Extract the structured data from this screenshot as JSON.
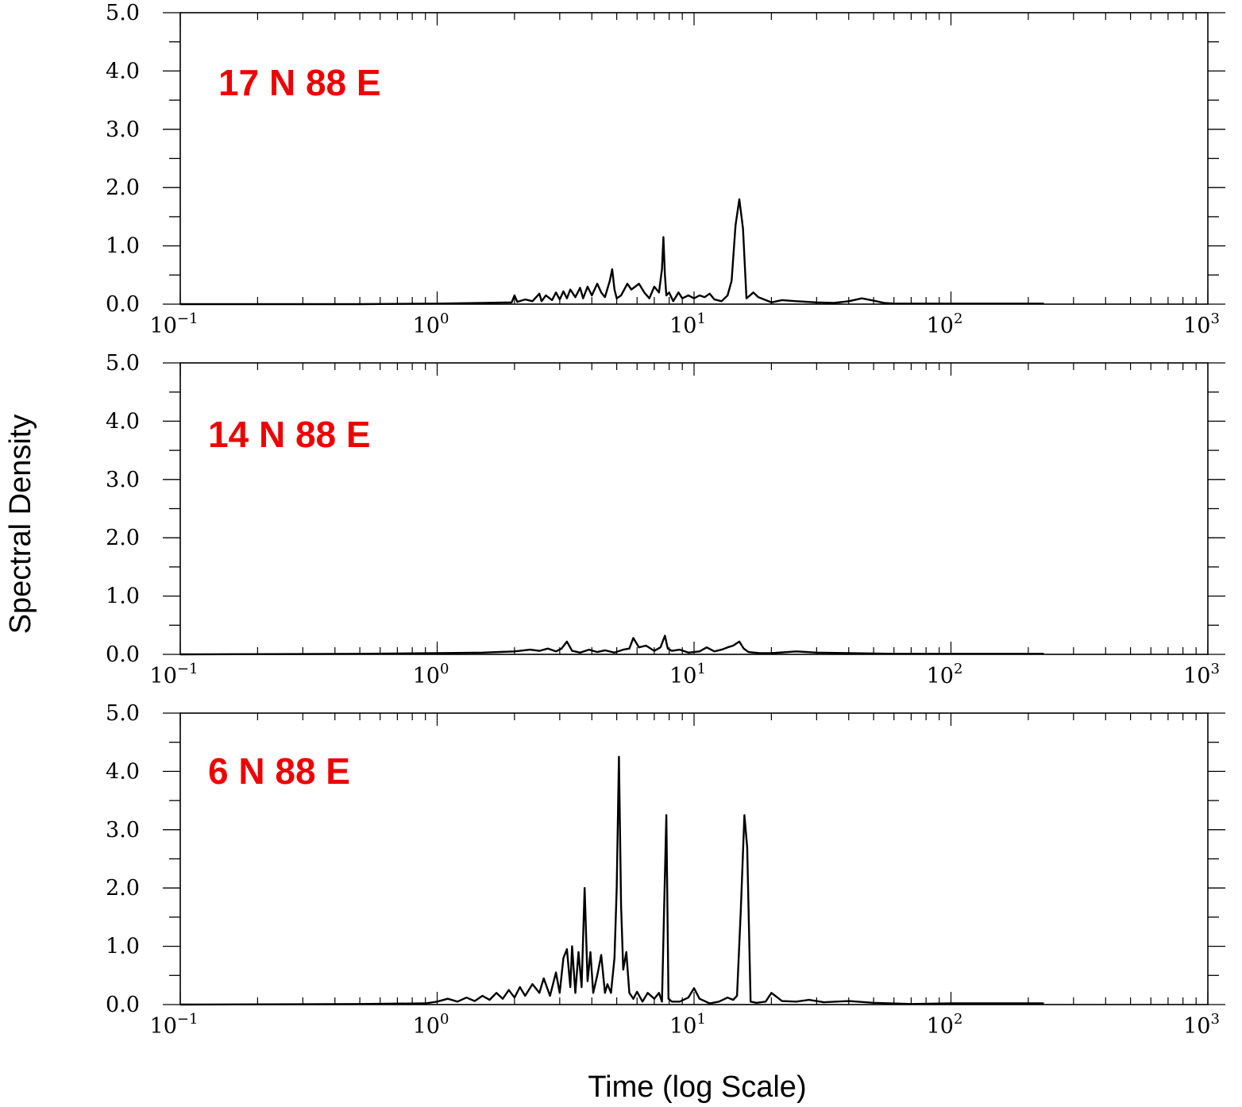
{
  "colors": {
    "axis": "#000000",
    "trace": "#000000",
    "label": "#ee0000"
  },
  "chart_data": {
    "type": "line",
    "xlabel": "Time (log Scale)",
    "ylabel": "Spectral Density",
    "xscale": "log",
    "xlim": [
      0.1,
      1000
    ],
    "ylim": [
      0,
      5
    ],
    "grid": false,
    "x_tick_labels": [
      {
        "base": "10",
        "exp": "−1"
      },
      {
        "base": "10",
        "exp": "0"
      },
      {
        "base": "10",
        "exp": "1"
      },
      {
        "base": "10",
        "exp": "2"
      },
      {
        "base": "10",
        "exp": "3"
      }
    ],
    "y_tick_labels": [
      "0.0",
      "1.0",
      "2.0",
      "3.0",
      "4.0",
      "5.0"
    ],
    "panels": [
      {
        "label": "17 N 88 E",
        "series": [
          {
            "x": [
              0.1,
              0.5,
              1.0,
              1.5,
              1.95,
              2.0,
              2.05,
              2.2,
              2.35,
              2.5,
              2.55,
              2.65,
              2.8,
              2.9,
              3.0,
              3.1,
              3.2,
              3.3,
              3.45,
              3.6,
              3.7,
              3.85,
              4.0,
              4.2,
              4.35,
              4.5,
              4.7,
              4.8,
              4.9,
              5.0,
              5.2,
              5.5,
              5.7,
              5.9,
              6.1,
              6.4,
              6.7,
              7.0,
              7.3,
              7.5,
              7.6,
              7.7,
              7.8,
              8.0,
              8.3,
              8.7,
              9.0,
              9.5,
              10.0,
              10.5,
              11.0,
              11.5,
              12.0,
              12.8,
              13.5,
              14.0,
              14.5,
              15.0,
              15.5,
              16.0,
              16.5,
              17.0,
              17.8,
              19.0,
              20.0,
              22.0,
              25.0,
              30.0,
              35.0,
              40.0,
              45.0,
              50.0,
              55.0,
              60.0,
              80.0,
              100.0,
              150.0,
              200.0,
              230.0
            ],
            "y": [
              0.0,
              0.0,
              0.01,
              0.02,
              0.03,
              0.15,
              0.04,
              0.08,
              0.05,
              0.18,
              0.05,
              0.15,
              0.07,
              0.2,
              0.08,
              0.22,
              0.1,
              0.25,
              0.12,
              0.28,
              0.1,
              0.3,
              0.15,
              0.35,
              0.2,
              0.12,
              0.4,
              0.6,
              0.25,
              0.1,
              0.15,
              0.35,
              0.25,
              0.3,
              0.35,
              0.2,
              0.1,
              0.3,
              0.2,
              0.6,
              1.15,
              0.5,
              0.15,
              0.2,
              0.05,
              0.2,
              0.1,
              0.15,
              0.1,
              0.15,
              0.12,
              0.18,
              0.08,
              0.05,
              0.15,
              0.4,
              1.35,
              1.8,
              1.3,
              0.1,
              0.15,
              0.2,
              0.12,
              0.07,
              0.03,
              0.07,
              0.05,
              0.03,
              0.02,
              0.05,
              0.1,
              0.06,
              0.02,
              0.01,
              0.01,
              0.01,
              0.01,
              0.01,
              0.01
            ]
          }
        ]
      },
      {
        "label": "14 N 88 E",
        "series": [
          {
            "x": [
              0.1,
              0.5,
              1.0,
              1.5,
              2.0,
              2.3,
              2.5,
              2.7,
              2.9,
              3.05,
              3.2,
              3.35,
              3.6,
              3.9,
              4.2,
              4.5,
              4.9,
              5.3,
              5.6,
              5.8,
              6.1,
              6.5,
              7.0,
              7.4,
              7.7,
              7.9,
              8.2,
              8.8,
              9.5,
              10.5,
              11.2,
              12.0,
              12.8,
              13.5,
              14.2,
              15.0,
              15.6,
              16.3,
              18.0,
              20.0,
              25.0,
              30.0,
              40.0,
              60.0,
              100.0,
              150.0,
              200.0,
              230.0
            ],
            "y": [
              0.0,
              0.01,
              0.02,
              0.03,
              0.05,
              0.08,
              0.06,
              0.1,
              0.05,
              0.1,
              0.22,
              0.06,
              0.03,
              0.08,
              0.04,
              0.07,
              0.03,
              0.08,
              0.1,
              0.28,
              0.12,
              0.15,
              0.06,
              0.12,
              0.32,
              0.1,
              0.06,
              0.08,
              0.03,
              0.05,
              0.12,
              0.05,
              0.08,
              0.12,
              0.15,
              0.22,
              0.1,
              0.04,
              0.02,
              0.02,
              0.05,
              0.03,
              0.02,
              0.01,
              0.01,
              0.01,
              0.01,
              0.01
            ]
          }
        ]
      },
      {
        "label": "6 N 88 E",
        "series": [
          {
            "x": [
              0.1,
              0.5,
              0.9,
              1.0,
              1.1,
              1.2,
              1.3,
              1.4,
              1.5,
              1.6,
              1.7,
              1.8,
              1.9,
              2.0,
              2.1,
              2.2,
              2.35,
              2.5,
              2.6,
              2.75,
              2.9,
              3.0,
              3.1,
              3.2,
              3.3,
              3.35,
              3.45,
              3.55,
              3.65,
              3.75,
              3.85,
              3.95,
              4.05,
              4.2,
              4.35,
              4.5,
              4.6,
              4.75,
              4.9,
              5.0,
              5.1,
              5.2,
              5.3,
              5.45,
              5.6,
              5.8,
              6.0,
              6.3,
              6.6,
              7.0,
              7.3,
              7.5,
              7.65,
              7.8,
              7.95,
              8.2,
              8.8,
              9.5,
              10.0,
              10.5,
              11.5,
              12.5,
              13.5,
              14.2,
              14.7,
              15.2,
              15.7,
              16.1,
              16.6,
              17.5,
              19.0,
              20.0,
              22.0,
              25.0,
              28.0,
              32.0,
              40.0,
              50.0,
              70.0,
              100.0,
              150.0,
              200.0,
              230.0
            ],
            "y": [
              0.0,
              0.01,
              0.02,
              0.05,
              0.1,
              0.05,
              0.12,
              0.06,
              0.15,
              0.08,
              0.2,
              0.1,
              0.25,
              0.12,
              0.3,
              0.15,
              0.35,
              0.2,
              0.45,
              0.15,
              0.55,
              0.2,
              0.8,
              0.95,
              0.3,
              1.0,
              0.2,
              0.9,
              0.3,
              2.0,
              0.4,
              0.9,
              0.2,
              0.5,
              0.85,
              0.2,
              0.35,
              0.2,
              0.8,
              2.0,
              4.25,
              1.7,
              0.6,
              0.9,
              0.2,
              0.1,
              0.22,
              0.05,
              0.2,
              0.1,
              0.2,
              0.05,
              1.7,
              3.25,
              0.1,
              0.05,
              0.05,
              0.12,
              0.28,
              0.1,
              0.02,
              0.05,
              0.12,
              0.08,
              0.15,
              1.6,
              3.25,
              2.7,
              0.05,
              0.03,
              0.05,
              0.2,
              0.06,
              0.05,
              0.08,
              0.04,
              0.06,
              0.03,
              0.01,
              0.02,
              0.02,
              0.02,
              0.02
            ]
          }
        ]
      }
    ]
  }
}
